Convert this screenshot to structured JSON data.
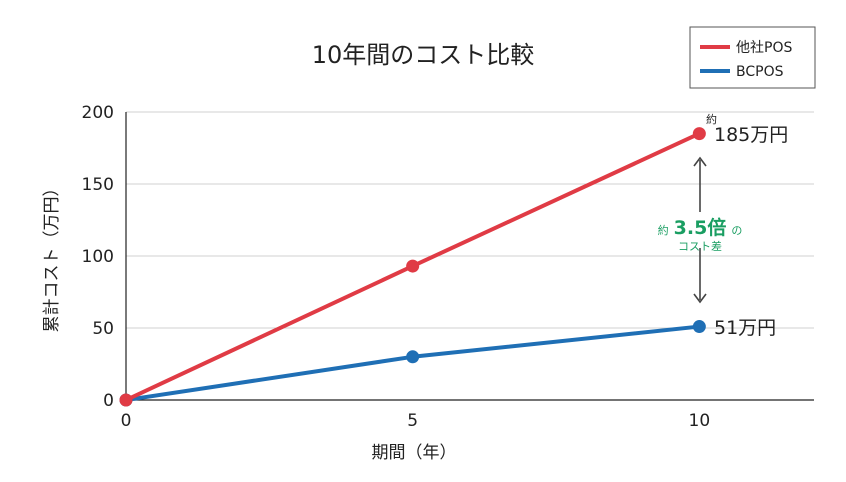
{
  "chart_data": {
    "type": "line",
    "title": "10年間のコスト比較",
    "xlabel": "期間（年）",
    "ylabel": "累計コスト（万円）",
    "x": [
      0,
      5,
      10
    ],
    "x_ticks": [
      "0",
      "5",
      "10"
    ],
    "y_ticks": [
      "0",
      "50",
      "100",
      "150",
      "200"
    ],
    "xlim": [
      0,
      12
    ],
    "ylim": [
      0,
      200
    ],
    "grid": "horizontal",
    "legend_position": "top-right",
    "series": [
      {
        "name": "他社POS",
        "values": [
          0,
          93,
          185
        ],
        "color": "#e03b45"
      },
      {
        "name": "BCPOS",
        "values": [
          0,
          30,
          51
        ],
        "color": "#1f6fb5"
      }
    ],
    "annotations": {
      "top_prefix": "約",
      "top_value": "185万円",
      "bottom_value": "51万円",
      "ratio_prefix": "約",
      "ratio_value": "3.5倍",
      "ratio_suffix": "の",
      "ratio_caption": "コスト差",
      "ratio_color": "#1a9e62"
    }
  }
}
